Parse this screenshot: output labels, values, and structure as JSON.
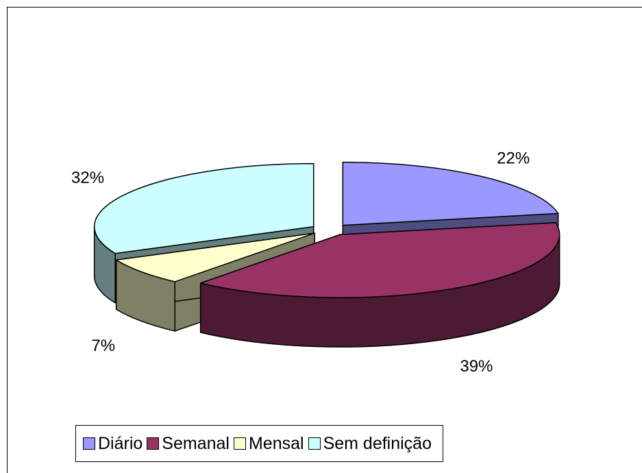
{
  "chart_data": {
    "type": "pie3d",
    "categories": [
      "Diário",
      "Semanal",
      "Mensal",
      "Sem definição"
    ],
    "values": [
      22,
      39,
      7,
      32
    ],
    "value_labels": [
      "22%",
      "39%",
      "7%",
      "32%"
    ],
    "colors": [
      "#9999ff",
      "#993366",
      "#ffffcc",
      "#ccffff"
    ],
    "legend": "bottom"
  }
}
